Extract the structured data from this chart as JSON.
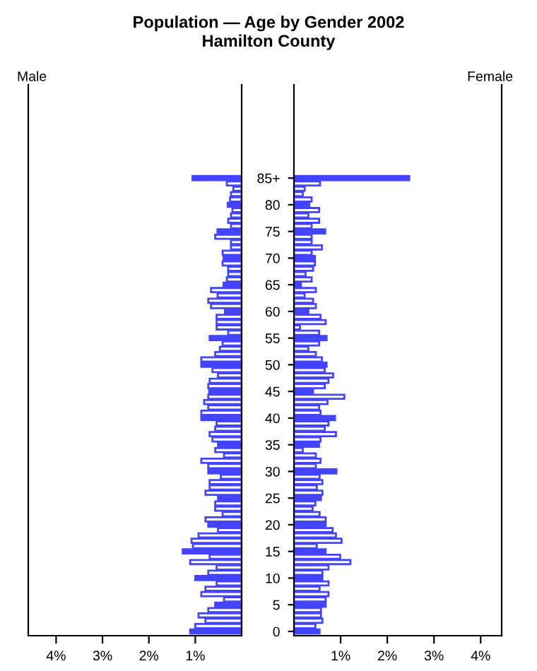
{
  "chart_data": [
    {
      "type": "bar",
      "orientation": "horizontal",
      "title": "Population — Age by Gender 2002",
      "subtitle": "Hamilton County",
      "annotations": [
        "Male"
      ],
      "tick_labels": "x",
      "categories": [
        null,
        null,
        null,
        null,
        null,
        null,
        null,
        null,
        null,
        null,
        null,
        null,
        null,
        null,
        null,
        null,
        null,
        null,
        null,
        null,
        null,
        null,
        null,
        null,
        null,
        null,
        null,
        null,
        null,
        null,
        null,
        null,
        null,
        null,
        null,
        null,
        null,
        null,
        null,
        null,
        null,
        null,
        null,
        null,
        null,
        null,
        null,
        null,
        null,
        null,
        null,
        null,
        null,
        null,
        null,
        null,
        null,
        null,
        null,
        null,
        null,
        null,
        null,
        null,
        null,
        null,
        null,
        null,
        null,
        null,
        null,
        null,
        null,
        null,
        null,
        null,
        null,
        null,
        null,
        null,
        null,
        null,
        null,
        null,
        null,
        null
      ],
      "series": [
        {
          "color": "#4444ff",
          "colors": [
            "#4444ff",
            "#ffffff",
            "#ffffff",
            "#ffffff",
            "#ffffff",
            "#4444ff",
            "#ffffff",
            "#ffffff",
            "#ffffff",
            "#ffffff",
            "#4444ff",
            "#ffffff",
            "#ffffff",
            "#ffffff",
            "#ffffff",
            "#4444ff",
            "#ffffff",
            "#ffffff",
            "#ffffff",
            "#ffffff",
            "#4444ff",
            "#ffffff",
            "#ffffff",
            "#ffffff",
            "#ffffff",
            "#4444ff",
            "#ffffff",
            "#ffffff",
            "#ffffff",
            "#ffffff",
            "#4444ff",
            "#ffffff",
            "#ffffff",
            "#ffffff",
            "#ffffff",
            "#4444ff",
            "#ffffff",
            "#ffffff",
            "#ffffff",
            "#ffffff",
            "#4444ff",
            "#ffffff",
            "#ffffff",
            "#ffffff",
            "#ffffff",
            "#4444ff",
            "#ffffff",
            "#ffffff",
            "#ffffff",
            "#ffffff",
            "#4444ff",
            "#ffffff",
            "#ffffff",
            "#ffffff",
            "#ffffff",
            "#4444ff",
            "#ffffff",
            "#ffffff",
            "#ffffff",
            "#ffffff",
            "#4444ff",
            "#ffffff",
            "#ffffff",
            "#ffffff",
            "#ffffff",
            "#4444ff",
            "#ffffff",
            "#ffffff",
            "#ffffff",
            "#ffffff",
            "#4444ff",
            "#ffffff",
            "#ffffff",
            "#ffffff",
            "#ffffff",
            "#4444ff",
            "#ffffff",
            "#ffffff",
            "#ffffff",
            "#ffffff",
            "#4444ff",
            "#ffffff",
            "#ffffff",
            "#ffffff",
            "#ffffff",
            "#4444ff"
          ],
          "values": [
            1.06,
            0.32,
            0.18,
            0.23,
            0.25,
            0.3,
            0.2,
            0.23,
            0.29,
            0.23,
            0.52,
            0.57,
            0.23,
            0.23,
            0.41,
            0.39,
            0.41,
            0.29,
            0.29,
            0.32,
            0.39,
            0.66,
            0.52,
            0.72,
            0.66,
            0.36,
            0.54,
            0.54,
            0.54,
            0.29,
            0.69,
            0.41,
            0.47,
            0.57,
            0.87,
            0.87,
            0.63,
            0.51,
            0.69,
            0.72,
            0.7,
            0.72,
            0.81,
            0.72,
            0.87,
            0.87,
            0.54,
            0.57,
            0.69,
            0.63,
            0.51,
            0.57,
            0.38,
            0.87,
            0.72,
            0.72,
            0.45,
            0.69,
            0.69,
            0.78,
            0.51,
            0.57,
            0.57,
            0.41,
            0.78,
            0.72,
            0.51,
            0.93,
            1.08,
            1.05,
            1.27,
            0.69,
            1.11,
            0.54,
            0.72,
            1.0,
            0.54,
            0.78,
            0.87,
            0.38,
            0.57,
            0.72,
            0.93,
            0.78,
            1.0,
            1.11
          ]
        }
      ],
      "xlim": [
        4.6,
        0
      ],
      "xticks": [
        {
          "value": 4,
          "label": "4%"
        },
        {
          "value": 3,
          "label": "3%"
        },
        {
          "value": 2,
          "label": "2%"
        },
        {
          "value": 1,
          "label": "1%"
        }
      ],
      "grid": false,
      "legend": false
    },
    {
      "type": "bar",
      "orientation": "horizontal",
      "annotations": [
        "Female"
      ],
      "categories": [
        "85+",
        null,
        null,
        null,
        null,
        "80",
        null,
        null,
        null,
        null,
        "75",
        null,
        null,
        null,
        null,
        "70",
        null,
        null,
        null,
        null,
        "65",
        null,
        null,
        null,
        null,
        "60",
        null,
        null,
        null,
        null,
        "55",
        null,
        null,
        null,
        null,
        "50",
        null,
        null,
        null,
        null,
        "45",
        null,
        null,
        null,
        null,
        "40",
        null,
        null,
        null,
        null,
        "35",
        null,
        null,
        null,
        null,
        "30",
        null,
        null,
        null,
        null,
        "25",
        null,
        null,
        null,
        null,
        "20",
        null,
        null,
        null,
        null,
        "15",
        null,
        null,
        null,
        null,
        "10",
        null,
        null,
        null,
        null,
        "5",
        null,
        null,
        null,
        null,
        "0"
      ],
      "series": [
        {
          "color": "#4444ff",
          "colors": [
            "#4444ff",
            "#ffffff",
            "#ffffff",
            "#ffffff",
            "#ffffff",
            "#4444ff",
            "#ffffff",
            "#ffffff",
            "#ffffff",
            "#ffffff",
            "#4444ff",
            "#ffffff",
            "#ffffff",
            "#ffffff",
            "#ffffff",
            "#4444ff",
            "#ffffff",
            "#ffffff",
            "#ffffff",
            "#ffffff",
            "#4444ff",
            "#ffffff",
            "#ffffff",
            "#ffffff",
            "#ffffff",
            "#4444ff",
            "#ffffff",
            "#ffffff",
            "#ffffff",
            "#ffffff",
            "#4444ff",
            "#ffffff",
            "#ffffff",
            "#ffffff",
            "#ffffff",
            "#4444ff",
            "#ffffff",
            "#ffffff",
            "#ffffff",
            "#ffffff",
            "#4444ff",
            "#ffffff",
            "#ffffff",
            "#ffffff",
            "#ffffff",
            "#4444ff",
            "#ffffff",
            "#ffffff",
            "#ffffff",
            "#ffffff",
            "#4444ff",
            "#ffffff",
            "#ffffff",
            "#ffffff",
            "#ffffff",
            "#4444ff",
            "#ffffff",
            "#ffffff",
            "#ffffff",
            "#ffffff",
            "#4444ff",
            "#ffffff",
            "#ffffff",
            "#ffffff",
            "#ffffff",
            "#4444ff",
            "#ffffff",
            "#ffffff",
            "#ffffff",
            "#ffffff",
            "#4444ff",
            "#ffffff",
            "#ffffff",
            "#ffffff",
            "#ffffff",
            "#4444ff",
            "#ffffff",
            "#ffffff",
            "#ffffff",
            "#ffffff",
            "#4444ff",
            "#ffffff",
            "#ffffff",
            "#ffffff",
            "#ffffff",
            "#4444ff"
          ],
          "values": [
            2.47,
            0.56,
            0.23,
            0.19,
            0.38,
            0.33,
            0.54,
            0.31,
            0.54,
            0.38,
            0.67,
            0.38,
            0.38,
            0.6,
            0.38,
            0.45,
            0.45,
            0.41,
            0.25,
            0.38,
            0.15,
            0.47,
            0.23,
            0.41,
            0.47,
            0.31,
            0.57,
            0.68,
            0.13,
            0.54,
            0.7,
            0.54,
            0.31,
            0.47,
            0.6,
            0.7,
            0.66,
            0.84,
            0.74,
            0.66,
            0.41,
            1.08,
            0.72,
            0.54,
            0.57,
            0.88,
            0.74,
            0.66,
            0.9,
            0.57,
            0.54,
            0.19,
            0.47,
            0.57,
            0.47,
            0.91,
            0.55,
            0.61,
            0.49,
            0.61,
            0.58,
            0.46,
            0.4,
            0.55,
            0.68,
            0.68,
            0.83,
            0.9,
            1.02,
            0.49,
            0.68,
            0.99,
            1.21,
            0.74,
            0.61,
            0.61,
            0.74,
            0.55,
            0.74,
            0.68,
            0.68,
            0.58,
            0.58,
            0.61,
            0.46,
            0.55
          ]
        }
      ],
      "xlim": [
        0,
        4.45
      ],
      "xticks": [
        {
          "value": 1,
          "label": "1%"
        },
        {
          "value": 2,
          "label": "2%"
        },
        {
          "value": 3,
          "label": "3%"
        },
        {
          "value": 4,
          "label": "4%"
        }
      ],
      "grid": false,
      "legend": false
    }
  ]
}
